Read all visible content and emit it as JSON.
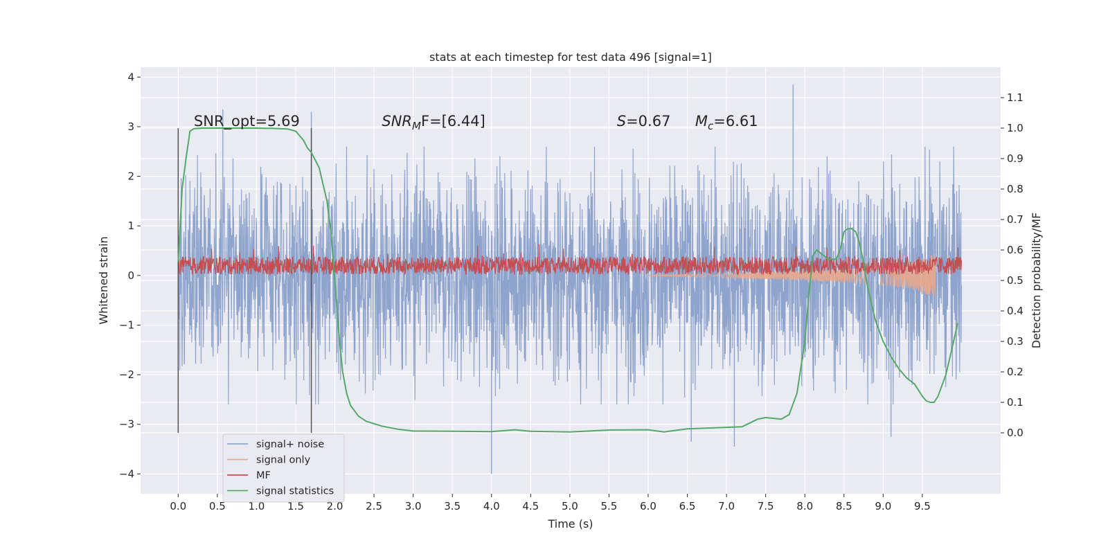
{
  "chart_data": {
    "type": "line",
    "title": "stats at each timestep for test data 496 [signal=1]",
    "xlabel": "Time (s)",
    "ylabel": "Whitened strain",
    "ylabel_right": "Detection probability/MF",
    "xlim": [
      -0.48,
      10.5
    ],
    "ylim": [
      -4.4,
      4.2
    ],
    "ylim_right": [
      -0.2,
      1.2
    ],
    "x_ticks": [
      "0.0",
      "0.5",
      "1.0",
      "1.5",
      "2.0",
      "2.5",
      "3.0",
      "3.5",
      "4.0",
      "4.5",
      "5.0",
      "5.5",
      "6.0",
      "6.5",
      "7.0",
      "7.5",
      "8.0",
      "8.5",
      "9.0",
      "9.5"
    ],
    "y_ticks": [
      "−4",
      "−3",
      "−2",
      "−1",
      "0",
      "1",
      "2",
      "3",
      "4"
    ],
    "y_ticks_right": [
      "0.0",
      "0.1",
      "0.2",
      "0.3",
      "0.4",
      "0.5",
      "0.6",
      "0.7",
      "0.8",
      "0.9",
      "1.0",
      "1.1"
    ],
    "grid": true,
    "legend_position": "lower-left",
    "annotations": [
      {
        "text": "SNR_opt=5.69",
        "x": 0.2,
        "y": 3.0
      },
      {
        "text": "SNR",
        "sub": "M",
        "rest": "F=[6.44]",
        "x": 2.6,
        "y": 3.0
      },
      {
        "text": "S",
        "rest": "=0.67",
        "x": 5.6,
        "y": 3.0
      },
      {
        "text": "M",
        "sub": "c",
        "rest": "=6.61",
        "x": 6.6,
        "y": 3.0
      }
    ],
    "vertical_lines": [
      0.0,
      1.7
    ],
    "series": [
      {
        "name": "signal+ noise",
        "color": "#8fa4cc",
        "axis": "left",
        "x_range": [
          0.0,
          10.0
        ],
        "envelope": {
          "typical": 1.2,
          "peak": [
            [
              0.57,
              3.35
            ],
            [
              1.7,
              3.3
            ],
            [
              7.85,
              3.85
            ],
            [
              4.0,
              -4.0
            ],
            [
              6.55,
              -3.35
            ],
            [
              7.1,
              -3.45
            ],
            [
              9.1,
              -3.25
            ]
          ]
        }
      },
      {
        "name": "signal only",
        "color": "#e8a88c",
        "axis": "left",
        "x_range": [
          6.0,
          9.67
        ],
        "envelope": [
          [
            6.0,
            0.0
          ],
          [
            7.0,
            0.05
          ],
          [
            8.0,
            0.1
          ],
          [
            8.7,
            0.15
          ],
          [
            9.3,
            0.25
          ],
          [
            9.6,
            0.4
          ],
          [
            9.67,
            0.45
          ]
        ]
      },
      {
        "name": "MF",
        "color": "#c44e52",
        "axis": "left",
        "x_range": [
          0.0,
          10.0
        ],
        "center": 0.2,
        "spread": 0.18
      },
      {
        "name": "signal statistics",
        "color": "#55a868",
        "axis": "right",
        "x": [
          0.0,
          0.05,
          0.1,
          0.15,
          0.2,
          0.3,
          0.5,
          0.8,
          1.0,
          1.2,
          1.4,
          1.5,
          1.6,
          1.65,
          1.7,
          1.8,
          1.9,
          1.95,
          2.0,
          2.05,
          2.1,
          2.15,
          2.2,
          2.3,
          2.4,
          2.6,
          2.8,
          3.0,
          3.5,
          4.0,
          4.3,
          4.5,
          5.0,
          5.5,
          6.0,
          6.2,
          6.5,
          7.0,
          7.2,
          7.4,
          7.5,
          7.7,
          7.8,
          7.9,
          8.0,
          8.05,
          8.1,
          8.15,
          8.2,
          8.25,
          8.3,
          8.4,
          8.45,
          8.5,
          8.55,
          8.6,
          8.65,
          8.7,
          8.75,
          8.8,
          8.9,
          9.0,
          9.1,
          9.2,
          9.3,
          9.4,
          9.5,
          9.55,
          9.6,
          9.65,
          9.7,
          9.8,
          9.9,
          9.95
        ],
        "y": [
          0.56,
          0.8,
          0.9,
          0.99,
          0.998,
          1.0,
          1.0,
          1.0,
          1.0,
          0.999,
          0.997,
          0.99,
          0.96,
          0.935,
          0.92,
          0.87,
          0.76,
          0.66,
          0.5,
          0.33,
          0.2,
          0.13,
          0.09,
          0.055,
          0.038,
          0.022,
          0.012,
          0.006,
          0.005,
          0.004,
          0.01,
          0.005,
          0.003,
          0.009,
          0.01,
          0.003,
          0.013,
          0.018,
          0.02,
          0.045,
          0.05,
          0.045,
          0.06,
          0.13,
          0.3,
          0.45,
          0.58,
          0.6,
          0.59,
          0.58,
          0.57,
          0.57,
          0.6,
          0.66,
          0.67,
          0.67,
          0.66,
          0.62,
          0.56,
          0.48,
          0.37,
          0.3,
          0.25,
          0.21,
          0.18,
          0.16,
          0.12,
          0.105,
          0.1,
          0.1,
          0.12,
          0.19,
          0.3,
          0.36
        ]
      }
    ]
  }
}
